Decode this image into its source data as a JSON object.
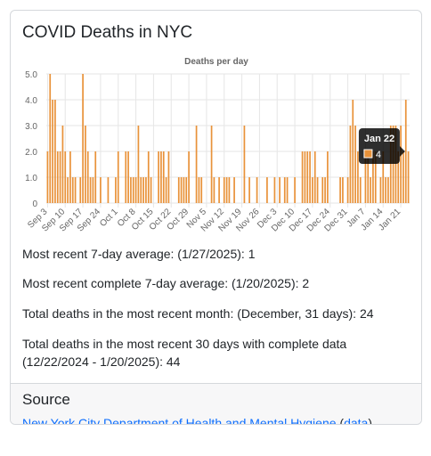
{
  "card": {
    "title": "COVID Deaths in NYC"
  },
  "stats": [
    {
      "label": "Most recent 7-day average: (1/27/2025): 1"
    },
    {
      "label": "Most recent complete 7-day average: (1/20/2025): 2"
    },
    {
      "label": "Total deaths in the most recent month: (December, 31 days): 24"
    },
    {
      "label": "Total deaths in the most recent 30 days with complete data (12/22/2024 - 1/20/2025): 44"
    }
  ],
  "source": {
    "title": "Source",
    "link_text": "New York City Department of Health and Mental Hygiene",
    "open_paren": "(",
    "data_link": "data",
    "close_paren": ")"
  },
  "tooltip": {
    "title": "Jan 22",
    "value": "4",
    "swatch_color": "#e8923a"
  },
  "colors": {
    "bar": "#e8923a",
    "grid": "#e6e6e6",
    "tick": "#666666"
  },
  "chart_data": {
    "type": "bar",
    "title": "Deaths per day",
    "xlabel": "",
    "ylabel": "",
    "ylim": [
      0,
      5
    ],
    "yticks": [
      "0",
      "1.0",
      "2.0",
      "3.0",
      "4.0",
      "5.0"
    ],
    "grid": true,
    "legend": "none",
    "x_tick_labels": [
      "Sep 3",
      "Sep 10",
      "Sep 17",
      "Sep 24",
      "Oct 1",
      "Oct 8",
      "Oct 15",
      "Oct 22",
      "Oct 29",
      "Nov 5",
      "Nov 12",
      "Nov 19",
      "Nov 26",
      "Dec 3",
      "Dec 10",
      "Dec 17",
      "Dec 24",
      "Dec 31",
      "Jan 7",
      "Jan 14",
      "Jan 21"
    ],
    "categories_start": "Sep 3",
    "categories_end": "Jan 27",
    "values": [
      2,
      5,
      4,
      4,
      2,
      2,
      3,
      2,
      1,
      2,
      1,
      1,
      0,
      1,
      5,
      3,
      2,
      1,
      1,
      2,
      0,
      1,
      0,
      0,
      1,
      0,
      0,
      1,
      2,
      0,
      0,
      2,
      2,
      1,
      1,
      1,
      3,
      1,
      1,
      1,
      2,
      1,
      0,
      0,
      2,
      2,
      2,
      1,
      2,
      0,
      0,
      0,
      1,
      1,
      1,
      1,
      2,
      0,
      0,
      3,
      1,
      1,
      0,
      0,
      0,
      3,
      1,
      0,
      1,
      0,
      1,
      1,
      1,
      0,
      1,
      0,
      0,
      0,
      3,
      0,
      1,
      0,
      0,
      1,
      0,
      0,
      0,
      1,
      0,
      0,
      1,
      0,
      1,
      0,
      1,
      1,
      0,
      0,
      1,
      0,
      0,
      2,
      2,
      2,
      2,
      1,
      2,
      1,
      0,
      1,
      1,
      2,
      0,
      0,
      0,
      0,
      1,
      1,
      0,
      1,
      3,
      4,
      3,
      2,
      1,
      0,
      2,
      2,
      1,
      2,
      2,
      0,
      1,
      2,
      1,
      1,
      3,
      3,
      3,
      2,
      3,
      2,
      4,
      2
    ]
  }
}
